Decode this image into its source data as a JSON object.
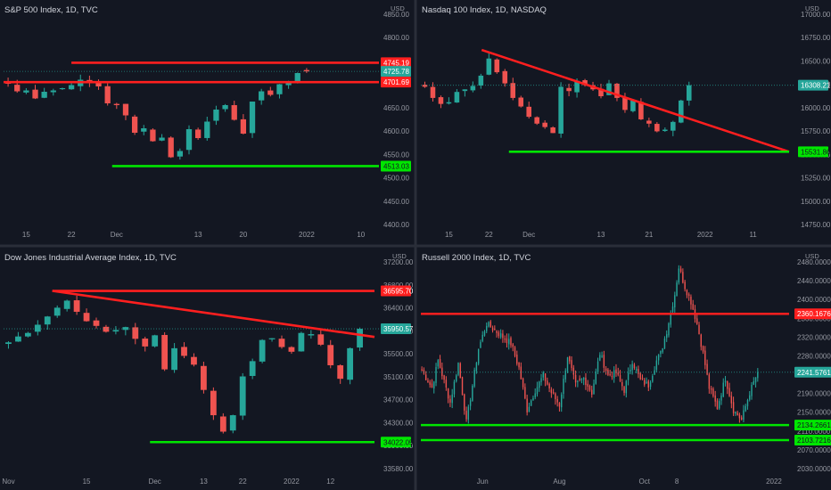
{
  "colors": {
    "background": "#131722",
    "up": "#26a69a",
    "down": "#ef5350",
    "resistance_line": "#ff1f1f",
    "support_line": "#00e600",
    "divider": "#2a2e39",
    "axis_text": "#9598a1",
    "title_text": "#d1d4dc"
  },
  "chart_data": [
    {
      "id": "spx",
      "type": "candlestick",
      "title": "S&P 500 Index, 1D, TVC",
      "currency": "USD",
      "ylim": [
        4370,
        4870
      ],
      "y_ticks": [
        "4850.00",
        "4800.00",
        "4750.00",
        "4700.00",
        "4650.00",
        "4600.00",
        "4550.00",
        "4500.00",
        "4450.00",
        "4400.00"
      ],
      "x_ticks": [
        {
          "label": "15",
          "i": 2
        },
        {
          "label": "22",
          "i": 7
        },
        {
          "label": "Dec",
          "i": 12
        },
        {
          "label": "13",
          "i": 21
        },
        {
          "label": "20",
          "i": 26
        },
        {
          "label": "2022",
          "i": 33
        },
        {
          "label": "10",
          "i": 39
        }
      ],
      "x_count": 41,
      "price_tags": [
        {
          "label": "4745.19",
          "value": 4745.19,
          "color": "#ff1f1f"
        },
        {
          "label": "4725.78",
          "value": 4725.78,
          "color": "#26a69a"
        },
        {
          "label": "4701.69",
          "value": 4701.69,
          "color": "#ff1f1f"
        },
        {
          "label": "4513.03",
          "value": 4513.03,
          "color": "#00e600"
        }
      ],
      "lines": [
        {
          "kind": "resistance",
          "x": [
            7.5,
            45
          ],
          "y": [
            4745.19,
            4745.19
          ]
        },
        {
          "kind": "resistance",
          "x": [
            0,
            45
          ],
          "y": [
            4701.69,
            4701.69
          ]
        },
        {
          "kind": "support",
          "x": [
            12,
            45
          ],
          "y": [
            4513.03,
            4513.03
          ]
        }
      ],
      "closes": [
        4698,
        4681,
        4683,
        4665,
        4680,
        4683,
        4688,
        4695,
        4707,
        4702,
        4692,
        4654,
        4650,
        4627,
        4588,
        4598,
        4569,
        4577,
        4533,
        4547,
        4596,
        4576,
        4613,
        4640,
        4650,
        4617,
        4586,
        4658,
        4681,
        4673,
        4697,
        4704,
        4722,
        4725.78
      ]
    },
    {
      "id": "ndx",
      "type": "candlestick",
      "title": "Nasdaq 100 Index, 1D, NASDAQ",
      "currency": "USD",
      "ylim": [
        14620,
        17220
      ],
      "y_ticks": [
        "17000.00",
        "16750.00",
        "16500.00",
        "16250.00",
        "16000.00",
        "15750.00",
        "15500.00",
        "15250.00",
        "15000.00",
        "14750.00"
      ],
      "x_ticks": [
        {
          "label": "15",
          "i": 3
        },
        {
          "label": "22",
          "i": 8
        },
        {
          "label": "Dec",
          "i": 13
        },
        {
          "label": "13",
          "i": 22
        },
        {
          "label": "21",
          "i": 28
        },
        {
          "label": "2022",
          "i": 35
        },
        {
          "label": "11",
          "i": 41
        }
      ],
      "x_count": 46,
      "price_tags": [
        {
          "label": "16308.21",
          "value": 16308.21,
          "color": "#26a69a"
        },
        {
          "label": "15531.86",
          "value": 15531.86,
          "color": "#00e600"
        }
      ],
      "lines": [
        {
          "kind": "resistance",
          "x": [
            7.6,
            46
          ],
          "y": [
            16720,
            15531.86
          ]
        },
        {
          "kind": "support",
          "x": [
            11,
            46
          ],
          "y": [
            15531.86,
            15531.86
          ]
        }
      ],
      "closes": [
        16290,
        16160,
        16090,
        16110,
        16230,
        16260,
        16300,
        16420,
        16620,
        16460,
        16330,
        16160,
        16060,
        15940,
        15860,
        15820,
        15750,
        16290,
        16240,
        16360,
        16310,
        16260,
        16180,
        16330,
        16160,
        16020,
        16130,
        15910,
        15860,
        15770,
        15790,
        15880,
        16130,
        16308.21
      ]
    },
    {
      "id": "dji",
      "type": "candlestick",
      "title": "Dow Jones Industrial Average Index, 1D, TVC",
      "currency": "USD",
      "ylim": [
        33480,
        37210
      ],
      "y_ticks": [
        "37200.00",
        "36800.00",
        "36400.00",
        "36000.00",
        "35500.00",
        "35100.00",
        "34700.00",
        "34300.00",
        "33900.00",
        "33580.00"
      ],
      "x_ticks": [
        {
          "label": "Nov",
          "i": 0
        },
        {
          "label": "15",
          "i": 8
        },
        {
          "label": "Dec",
          "i": 15
        },
        {
          "label": "13",
          "i": 20
        },
        {
          "label": "22",
          "i": 24
        },
        {
          "label": "2022",
          "i": 29
        },
        {
          "label": "12",
          "i": 33
        }
      ],
      "x_count": 38,
      "price_tags": [
        {
          "label": "36595.70",
          "value": 36595.7,
          "color": "#ff1f1f"
        },
        {
          "label": "35950.57",
          "value": 35950.57,
          "color": "#26a69a"
        },
        {
          "label": "34022.05",
          "value": 34022.05,
          "color": "#00e600"
        }
      ],
      "lines": [
        {
          "kind": "resistance",
          "x": [
            5,
            38
          ],
          "y": [
            36595.7,
            36595.7
          ]
        },
        {
          "kind": "resistance",
          "x": [
            5,
            38
          ],
          "y": [
            36595.7,
            35812
          ]
        },
        {
          "kind": "support",
          "x": [
            15,
            38
          ],
          "y": [
            34022.05,
            34022.05
          ]
        }
      ],
      "closes": [
        35720,
        35820,
        35880,
        36020,
        36160,
        36310,
        36430,
        36240,
        36080,
        36000,
        35900,
        35930,
        35980,
        35780,
        35650,
        35840,
        35260,
        35620,
        35490,
        35340,
        34910,
        34480,
        34200,
        34480,
        35140,
        35400,
        35760,
        35790,
        35640,
        35560,
        35880,
        35860,
        35680,
        35330,
        35100,
        35620,
        35950.57
      ]
    },
    {
      "id": "rut",
      "type": "candlestick",
      "title": "Russell 2000 Index, 1D, TVC",
      "currency": "USD",
      "ylim": [
        2035,
        2480
      ],
      "y_ticks": [
        "2480.0000",
        "2440.0000",
        "2400.0000",
        "2360.0000",
        "2320.0000",
        "2280.0000",
        "2240.0000",
        "2190.0000",
        "2150.0000",
        "2110.0000",
        "2070.0000",
        "2030.0000"
      ],
      "x_ticks": [
        {
          "label": "Jun",
          "i": 30
        },
        {
          "label": "Aug",
          "i": 68
        },
        {
          "label": "Oct",
          "i": 110
        },
        {
          "label": "8",
          "i": 126
        },
        {
          "label": "2022",
          "i": 174
        }
      ],
      "x_count": 182,
      "price_tags": [
        {
          "label": "2360.1676",
          "value": 2360.1676,
          "color": "#ff1f1f"
        },
        {
          "label": "2241.5761",
          "value": 2241.5761,
          "color": "#26a69a"
        },
        {
          "label": "2134.2661",
          "value": 2134.2661,
          "color": "#00e600"
        },
        {
          "label": "2103.7216",
          "value": 2103.7216,
          "color": "#00e600"
        }
      ],
      "lines": [
        {
          "kind": "resistance",
          "x": [
            0,
            182
          ],
          "y": [
            2360.1676,
            2360.1676
          ]
        },
        {
          "kind": "support",
          "x": [
            0,
            182
          ],
          "y": [
            2134.2661,
            2134.2661
          ]
        },
        {
          "kind": "support",
          "x": [
            0,
            182
          ],
          "y": [
            2103.7216,
            2103.7216
          ]
        }
      ],
      "anchors": [
        [
          0,
          2245
        ],
        [
          5,
          2210
        ],
        [
          8,
          2265
        ],
        [
          14,
          2180
        ],
        [
          18,
          2260
        ],
        [
          22,
          2140
        ],
        [
          28,
          2290
        ],
        [
          32,
          2340
        ],
        [
          38,
          2320
        ],
        [
          44,
          2300
        ],
        [
          48,
          2250
        ],
        [
          52,
          2165
        ],
        [
          56,
          2205
        ],
        [
          60,
          2235
        ],
        [
          64,
          2200
        ],
        [
          68,
          2175
        ],
        [
          72,
          2275
        ],
        [
          76,
          2215
        ],
        [
          80,
          2230
        ],
        [
          84,
          2200
        ],
        [
          88,
          2280
        ],
        [
          92,
          2235
        ],
        [
          96,
          2240
        ],
        [
          100,
          2205
        ],
        [
          104,
          2265
        ],
        [
          108,
          2225
        ],
        [
          112,
          2215
        ],
        [
          116,
          2265
        ],
        [
          118,
          2280
        ],
        [
          121,
          2325
        ],
        [
          125,
          2400
        ],
        [
          127,
          2455
        ],
        [
          130,
          2415
        ],
        [
          133,
          2385
        ],
        [
          136,
          2340
        ],
        [
          139,
          2280
        ],
        [
          142,
          2210
        ],
        [
          146,
          2170
        ],
        [
          150,
          2230
        ],
        [
          154,
          2165
        ],
        [
          158,
          2145
        ],
        [
          162,
          2200
        ],
        [
          166,
          2241.5761
        ]
      ]
    }
  ]
}
